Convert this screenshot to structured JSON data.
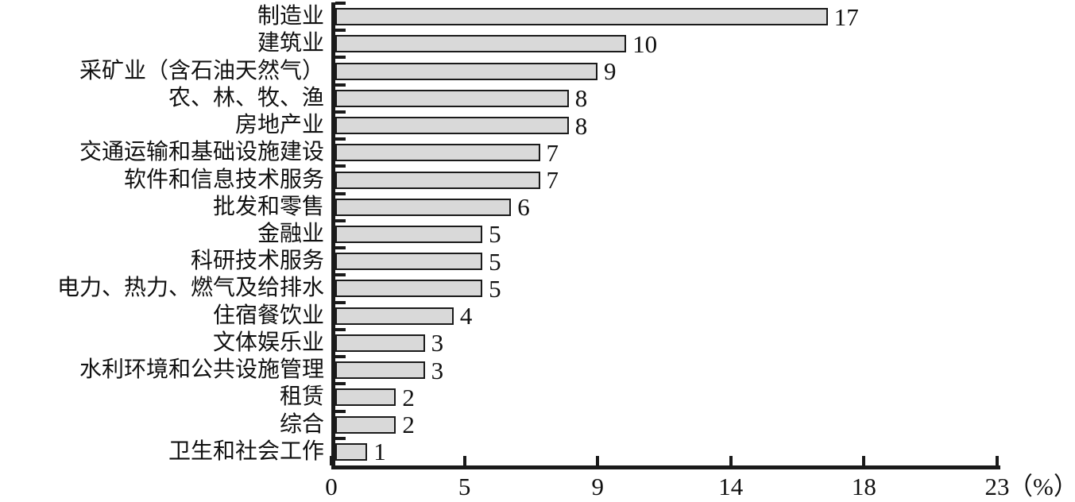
{
  "chart_data": {
    "type": "bar",
    "orientation": "horizontal",
    "title": "",
    "categories": [
      "制造业",
      "建筑业",
      "采矿业（含石油天然气）",
      "农、林、牧、渔",
      "房地产业",
      "交通运输和基础设施建设",
      "软件和信息技术服务",
      "批发和零售",
      "金融业",
      "科研技术服务",
      "电力、热力、燃气及给排水",
      "住宿餐饮业",
      "文体娱乐业",
      "水利环境和公共设施管理",
      "租赁",
      "综合",
      "卫生和社会工作"
    ],
    "values": [
      17,
      10,
      9,
      8,
      8,
      7,
      7,
      6,
      5,
      5,
      5,
      4,
      3,
      3,
      2,
      2,
      1
    ],
    "value_labels": [
      "17",
      "10",
      "9",
      "8",
      "8",
      "7",
      "7",
      "6",
      "5",
      "5",
      "5",
      "4",
      "3",
      "3",
      "2",
      "2",
      "1"
    ],
    "xlabel": "",
    "ylabel": "",
    "x_ticks": [
      "0",
      "5",
      "9",
      "14",
      "18",
      "23"
    ],
    "x_unit": "（%）",
    "xlim": [
      0,
      23
    ],
    "grid": false,
    "legend": "none",
    "colors": {
      "bar_fill": "#d9d9d9",
      "bar_border": "#1a1a1a",
      "axis": "#1a1a1a",
      "text": "#111111",
      "background": "#ffffff"
    }
  }
}
